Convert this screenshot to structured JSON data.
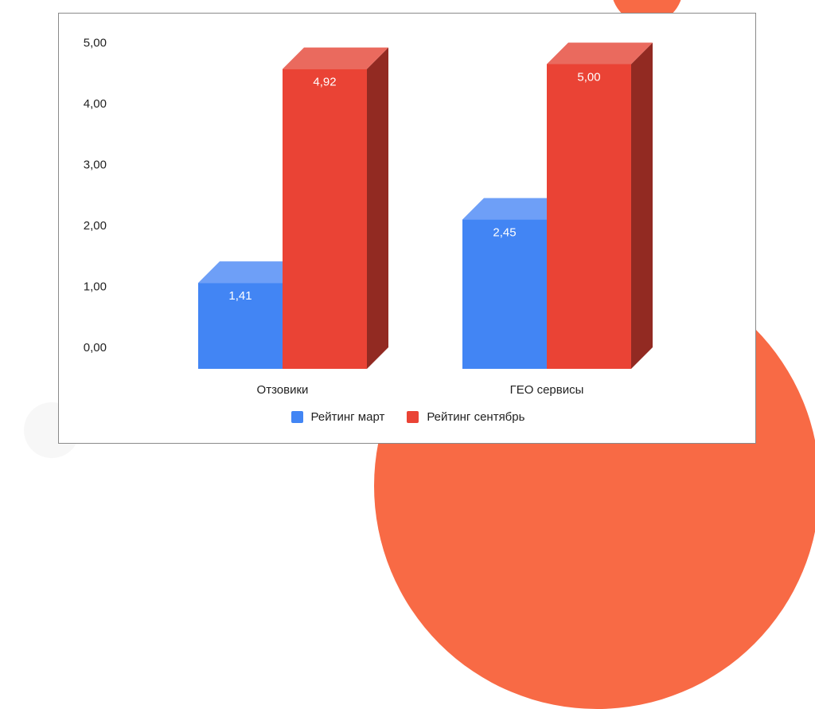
{
  "chart_data": {
    "type": "bar",
    "style": "3d",
    "categories": [
      "Отзовики",
      "ГЕО сервисы"
    ],
    "series": [
      {
        "name": "Рейтинг март",
        "values": [
          1.41,
          2.45
        ],
        "color": "#4285f4"
      },
      {
        "name": "Рейтинг сентябрь",
        "values": [
          4.92,
          5.0
        ],
        "color": "#ea4335"
      }
    ],
    "data_labels": [
      [
        "1,41",
        "2,45"
      ],
      [
        "4,92",
        "5,00"
      ]
    ],
    "y_ticks": [
      "0,00",
      "1,00",
      "2,00",
      "3,00",
      "4,00",
      "5,00"
    ],
    "ylim": [
      0,
      5
    ],
    "legend_position": "bottom",
    "grid": false
  }
}
